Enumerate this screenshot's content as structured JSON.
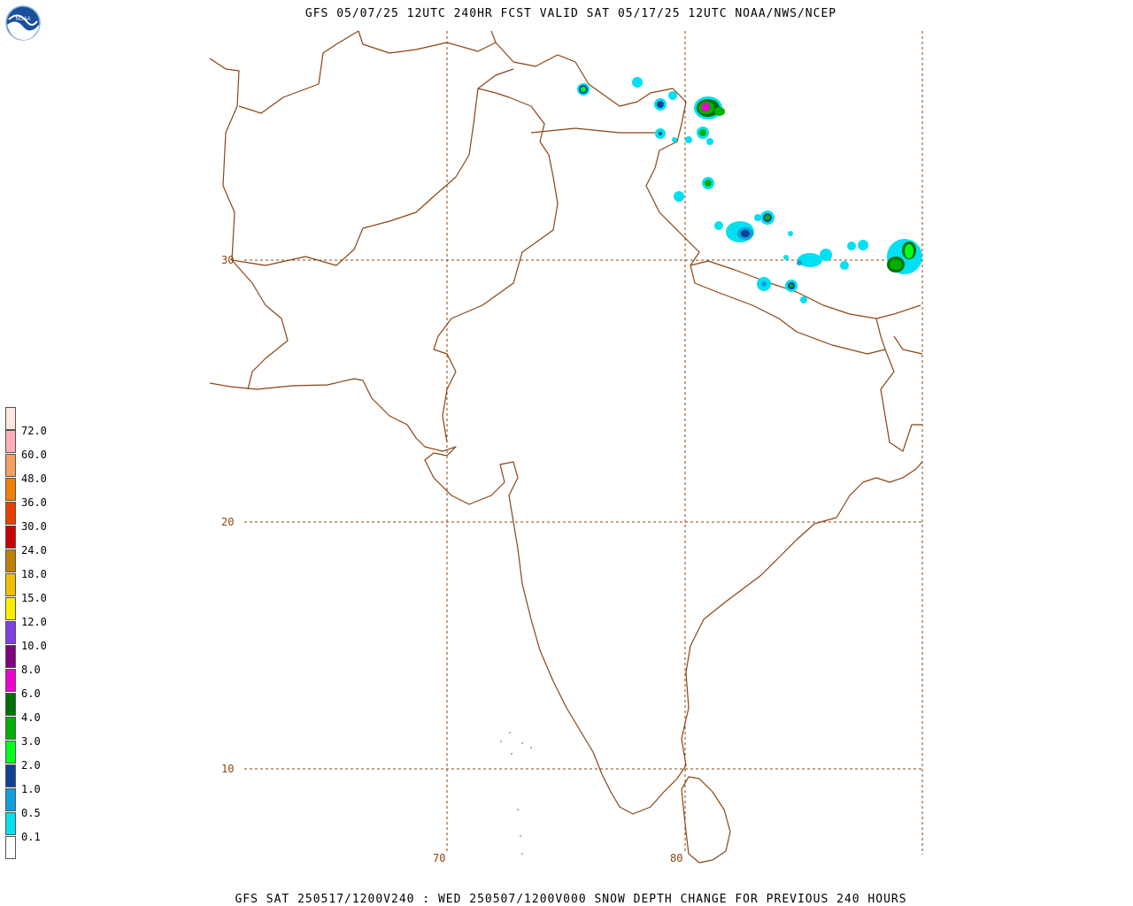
{
  "header": {
    "title": "GFS 05/07/25 12UTC 240HR FCST VALID SAT 05/17/25 12UTC NOAA/NWS/NCEP"
  },
  "footer": {
    "text": "GFS SAT 250517/1200V240 : WED 250507/1200V000 SNOW DEPTH CHANGE FOR PREVIOUS 240 HOURS"
  },
  "logo": {
    "icon": "noaa-logo-icon",
    "text": "NOAA"
  },
  "map": {
    "lat_labels": [
      "30",
      "20",
      "10"
    ],
    "lon_labels": [
      "70",
      "80"
    ],
    "border_color": "#8b4513",
    "grid_color": "#8b4513"
  },
  "legend": {
    "items": [
      {
        "label": "",
        "color": "#ffe8e0"
      },
      {
        "label": "72.0",
        "color": "#ffb0b8"
      },
      {
        "label": "60.0",
        "color": "#f5a060"
      },
      {
        "label": "48.0",
        "color": "#f08000"
      },
      {
        "label": "36.0",
        "color": "#e84000"
      },
      {
        "label": "30.0",
        "color": "#c80000"
      },
      {
        "label": "24.0",
        "color": "#c08000"
      },
      {
        "label": "18.0",
        "color": "#f0c000"
      },
      {
        "label": "15.0",
        "color": "#f8f000"
      },
      {
        "label": "12.0",
        "color": "#8040e0"
      },
      {
        "label": "10.0",
        "color": "#800080"
      },
      {
        "label": "8.0",
        "color": "#f000d0"
      },
      {
        "label": "6.0",
        "color": "#007000"
      },
      {
        "label": "4.0",
        "color": "#00b000"
      },
      {
        "label": "3.0",
        "color": "#00ff20"
      },
      {
        "label": "2.0",
        "color": "#104090"
      },
      {
        "label": "1.0",
        "color": "#10a0e0"
      },
      {
        "label": "0.5",
        "color": "#00e0f0"
      },
      {
        "label": "0.1",
        "color": "#ffffff"
      }
    ]
  }
}
